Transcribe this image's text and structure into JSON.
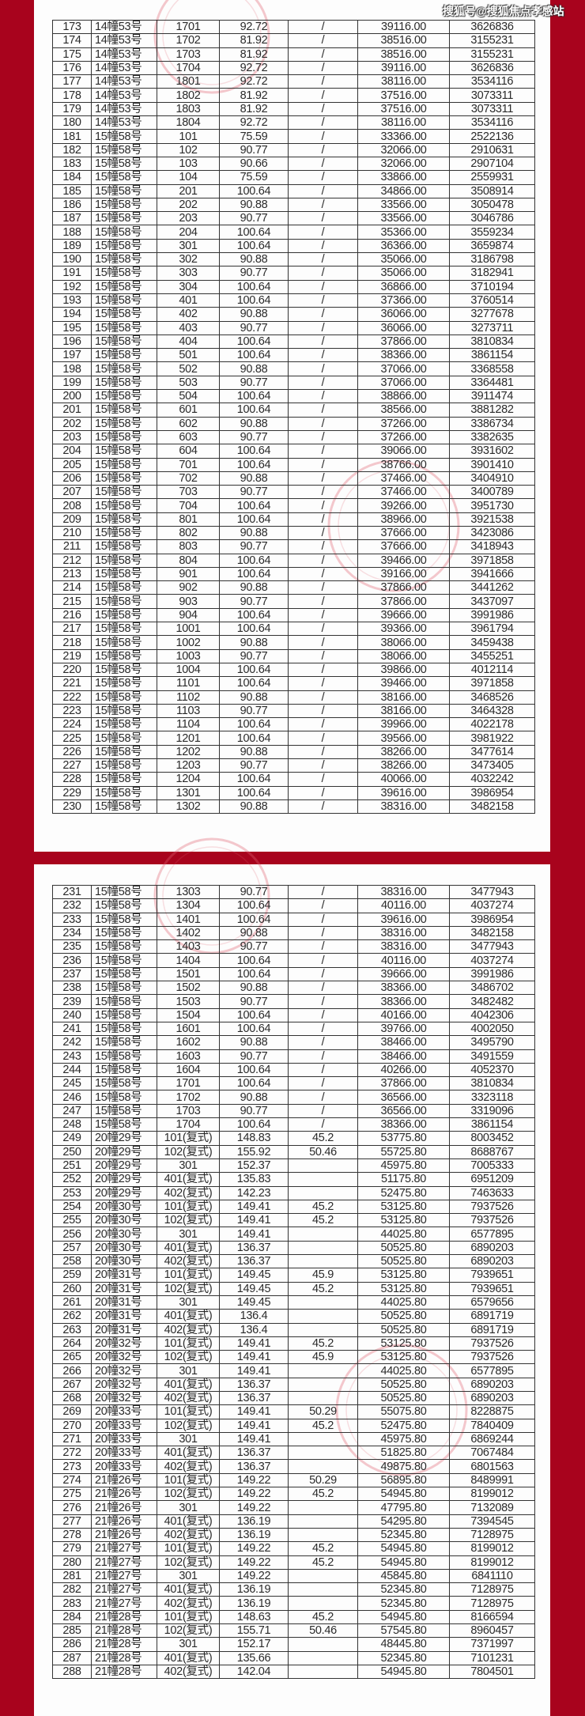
{
  "watermark": "搜狐号@搜狐焦点孝感站",
  "colors": {
    "background": "#a8031d",
    "stamp": "#e06070"
  },
  "pages": [
    {
      "rows": [
        [
          "173",
          "14幢53号",
          "1701",
          "92.72",
          "/",
          "39116.00",
          "3626836"
        ],
        [
          "174",
          "14幢53号",
          "1702",
          "81.92",
          "/",
          "38516.00",
          "3155231"
        ],
        [
          "175",
          "14幢53号",
          "1703",
          "81.92",
          "/",
          "38516.00",
          "3155231"
        ],
        [
          "176",
          "14幢53号",
          "1704",
          "92.72",
          "/",
          "39116.00",
          "3626836"
        ],
        [
          "177",
          "14幢53号",
          "1801",
          "92.72",
          "/",
          "38116.00",
          "3534116"
        ],
        [
          "178",
          "14幢53号",
          "1802",
          "81.92",
          "/",
          "37516.00",
          "3073311"
        ],
        [
          "179",
          "14幢53号",
          "1803",
          "81.92",
          "/",
          "37516.00",
          "3073311"
        ],
        [
          "180",
          "14幢53号",
          "1804",
          "92.72",
          "/",
          "38116.00",
          "3534116"
        ],
        [
          "181",
          "15幢58号",
          "101",
          "75.59",
          "/",
          "33366.00",
          "2522136"
        ],
        [
          "182",
          "15幢58号",
          "102",
          "90.77",
          "/",
          "32066.00",
          "2910631"
        ],
        [
          "183",
          "15幢58号",
          "103",
          "90.66",
          "/",
          "32066.00",
          "2907104"
        ],
        [
          "184",
          "15幢58号",
          "104",
          "75.59",
          "/",
          "33866.00",
          "2559931"
        ],
        [
          "185",
          "15幢58号",
          "201",
          "100.64",
          "/",
          "34866.00",
          "3508914"
        ],
        [
          "186",
          "15幢58号",
          "202",
          "90.88",
          "/",
          "33566.00",
          "3050478"
        ],
        [
          "187",
          "15幢58号",
          "203",
          "90.77",
          "/",
          "33566.00",
          "3046786"
        ],
        [
          "188",
          "15幢58号",
          "204",
          "100.64",
          "/",
          "35366.00",
          "3559234"
        ],
        [
          "189",
          "15幢58号",
          "301",
          "100.64",
          "/",
          "36366.00",
          "3659874"
        ],
        [
          "190",
          "15幢58号",
          "302",
          "90.88",
          "/",
          "35066.00",
          "3186798"
        ],
        [
          "191",
          "15幢58号",
          "303",
          "90.77",
          "/",
          "35066.00",
          "3182941"
        ],
        [
          "192",
          "15幢58号",
          "304",
          "100.64",
          "/",
          "36866.00",
          "3710194"
        ],
        [
          "193",
          "15幢58号",
          "401",
          "100.64",
          "/",
          "37366.00",
          "3760514"
        ],
        [
          "194",
          "15幢58号",
          "402",
          "90.88",
          "/",
          "36066.00",
          "3277678"
        ],
        [
          "195",
          "15幢58号",
          "403",
          "90.77",
          "/",
          "36066.00",
          "3273711"
        ],
        [
          "196",
          "15幢58号",
          "404",
          "100.64",
          "/",
          "37866.00",
          "3810834"
        ],
        [
          "197",
          "15幢58号",
          "501",
          "100.64",
          "/",
          "38366.00",
          "3861154"
        ],
        [
          "198",
          "15幢58号",
          "502",
          "90.88",
          "/",
          "37066.00",
          "3368558"
        ],
        [
          "199",
          "15幢58号",
          "503",
          "90.77",
          "/",
          "37066.00",
          "3364481"
        ],
        [
          "200",
          "15幢58号",
          "504",
          "100.64",
          "/",
          "38866.00",
          "3911474"
        ],
        [
          "201",
          "15幢58号",
          "601",
          "100.64",
          "/",
          "38566.00",
          "3881282"
        ],
        [
          "202",
          "15幢58号",
          "602",
          "90.88",
          "/",
          "37266.00",
          "3386734"
        ],
        [
          "203",
          "15幢58号",
          "603",
          "90.77",
          "/",
          "37266.00",
          "3382635"
        ],
        [
          "204",
          "15幢58号",
          "604",
          "100.64",
          "/",
          "39066.00",
          "3931602"
        ],
        [
          "205",
          "15幢58号",
          "701",
          "100.64",
          "/",
          "38766.00",
          "3901410"
        ],
        [
          "206",
          "15幢58号",
          "702",
          "90.88",
          "/",
          "37466.00",
          "3404910"
        ],
        [
          "207",
          "15幢58号",
          "703",
          "90.77",
          "/",
          "37466.00",
          "3400789"
        ],
        [
          "208",
          "15幢58号",
          "704",
          "100.64",
          "/",
          "39266.00",
          "3951730"
        ],
        [
          "209",
          "15幢58号",
          "801",
          "100.64",
          "/",
          "38966.00",
          "3921538"
        ],
        [
          "210",
          "15幢58号",
          "802",
          "90.88",
          "/",
          "37666.00",
          "3423086"
        ],
        [
          "211",
          "15幢58号",
          "803",
          "90.77",
          "/",
          "37666.00",
          "3418943"
        ],
        [
          "212",
          "15幢58号",
          "804",
          "100.64",
          "/",
          "39466.00",
          "3971858"
        ],
        [
          "213",
          "15幢58号",
          "901",
          "100.64",
          "/",
          "39166.00",
          "3941666"
        ],
        [
          "214",
          "15幢58号",
          "902",
          "90.88",
          "/",
          "37866.00",
          "3441262"
        ],
        [
          "215",
          "15幢58号",
          "903",
          "90.77",
          "/",
          "37866.00",
          "3437097"
        ],
        [
          "216",
          "15幢58号",
          "904",
          "100.64",
          "/",
          "39666.00",
          "3991986"
        ],
        [
          "217",
          "15幢58号",
          "1001",
          "100.64",
          "/",
          "39366.00",
          "3961794"
        ],
        [
          "218",
          "15幢58号",
          "1002",
          "90.88",
          "/",
          "38066.00",
          "3459438"
        ],
        [
          "219",
          "15幢58号",
          "1003",
          "90.77",
          "/",
          "38066.00",
          "3455251"
        ],
        [
          "220",
          "15幢58号",
          "1004",
          "100.64",
          "/",
          "39866.00",
          "4012114"
        ],
        [
          "221",
          "15幢58号",
          "1101",
          "100.64",
          "/",
          "39466.00",
          "3971858"
        ],
        [
          "222",
          "15幢58号",
          "1102",
          "90.88",
          "/",
          "38166.00",
          "3468526"
        ],
        [
          "223",
          "15幢58号",
          "1103",
          "90.77",
          "/",
          "38166.00",
          "3464328"
        ],
        [
          "224",
          "15幢58号",
          "1104",
          "100.64",
          "/",
          "39966.00",
          "4022178"
        ],
        [
          "225",
          "15幢58号",
          "1201",
          "100.64",
          "/",
          "39566.00",
          "3981922"
        ],
        [
          "226",
          "15幢58号",
          "1202",
          "90.88",
          "/",
          "38266.00",
          "3477614"
        ],
        [
          "227",
          "15幢58号",
          "1203",
          "90.77",
          "/",
          "38266.00",
          "3473405"
        ],
        [
          "228",
          "15幢58号",
          "1204",
          "100.64",
          "/",
          "40066.00",
          "4032242"
        ],
        [
          "229",
          "15幢58号",
          "1301",
          "100.64",
          "/",
          "39616.00",
          "3986954"
        ],
        [
          "230",
          "15幢58号",
          "1302",
          "90.88",
          "/",
          "38316.00",
          "3482158"
        ]
      ]
    },
    {
      "rows": [
        [
          "231",
          "15幢58号",
          "1303",
          "90.77",
          "/",
          "38316.00",
          "3477943"
        ],
        [
          "232",
          "15幢58号",
          "1304",
          "100.64",
          "/",
          "40116.00",
          "4037274"
        ],
        [
          "233",
          "15幢58号",
          "1401",
          "100.64",
          "/",
          "39616.00",
          "3986954"
        ],
        [
          "234",
          "15幢58号",
          "1402",
          "90.88",
          "/",
          "38316.00",
          "3482158"
        ],
        [
          "235",
          "15幢58号",
          "1403",
          "90.77",
          "/",
          "38316.00",
          "3477943"
        ],
        [
          "236",
          "15幢58号",
          "1404",
          "100.64",
          "/",
          "40116.00",
          "4037274"
        ],
        [
          "237",
          "15幢58号",
          "1501",
          "100.64",
          "/",
          "39666.00",
          "3991986"
        ],
        [
          "238",
          "15幢58号",
          "1502",
          "90.88",
          "/",
          "38366.00",
          "3486702"
        ],
        [
          "239",
          "15幢58号",
          "1503",
          "90.77",
          "/",
          "38366.00",
          "3482482"
        ],
        [
          "240",
          "15幢58号",
          "1504",
          "100.64",
          "/",
          "40166.00",
          "4042306"
        ],
        [
          "241",
          "15幢58号",
          "1601",
          "100.64",
          "/",
          "39766.00",
          "4002050"
        ],
        [
          "242",
          "15幢58号",
          "1602",
          "90.88",
          "/",
          "38466.00",
          "3495790"
        ],
        [
          "243",
          "15幢58号",
          "1603",
          "90.77",
          "/",
          "38466.00",
          "3491559"
        ],
        [
          "244",
          "15幢58号",
          "1604",
          "100.64",
          "/",
          "40266.00",
          "4052370"
        ],
        [
          "245",
          "15幢58号",
          "1701",
          "100.64",
          "/",
          "37866.00",
          "3810834"
        ],
        [
          "246",
          "15幢58号",
          "1702",
          "90.88",
          "/",
          "36566.00",
          "3323118"
        ],
        [
          "247",
          "15幢58号",
          "1703",
          "90.77",
          "/",
          "36566.00",
          "3319096"
        ],
        [
          "248",
          "15幢58号",
          "1704",
          "100.64",
          "/",
          "38366.00",
          "3861154"
        ],
        [
          "249",
          "20幢29号",
          "101(复式)",
          "148.83",
          "45.2",
          "53775.80",
          "8003452"
        ],
        [
          "250",
          "20幢29号",
          "102(复式)",
          "155.92",
          "50.46",
          "55725.80",
          "8688767"
        ],
        [
          "251",
          "20幢29号",
          "301",
          "152.37",
          "",
          "45975.80",
          "7005333"
        ],
        [
          "252",
          "20幢29号",
          "401(复式)",
          "135.83",
          "",
          "51175.80",
          "6951209"
        ],
        [
          "253",
          "20幢29号",
          "402(复式)",
          "142.23",
          "",
          "52475.80",
          "7463633"
        ],
        [
          "254",
          "20幢30号",
          "101(复式)",
          "149.41",
          "45.2",
          "53125.80",
          "7937526"
        ],
        [
          "255",
          "20幢30号",
          "102(复式)",
          "149.41",
          "45.2",
          "53125.80",
          "7937526"
        ],
        [
          "256",
          "20幢30号",
          "301",
          "149.41",
          "",
          "44025.80",
          "6577895"
        ],
        [
          "257",
          "20幢30号",
          "401(复式)",
          "136.37",
          "",
          "50525.80",
          "6890203"
        ],
        [
          "258",
          "20幢30号",
          "402(复式)",
          "136.37",
          "",
          "50525.80",
          "6890203"
        ],
        [
          "259",
          "20幢31号",
          "101(复式)",
          "149.45",
          "45.9",
          "53125.80",
          "7939651"
        ],
        [
          "260",
          "20幢31号",
          "102(复式)",
          "149.45",
          "45.2",
          "53125.80",
          "7939651"
        ],
        [
          "261",
          "20幢31号",
          "301",
          "149.45",
          "",
          "44025.80",
          "6579656"
        ],
        [
          "262",
          "20幢31号",
          "401(复式)",
          "136.4",
          "",
          "50525.80",
          "6891719"
        ],
        [
          "263",
          "20幢31号",
          "402(复式)",
          "136.4",
          "",
          "50525.80",
          "6891719"
        ],
        [
          "264",
          "20幢32号",
          "101(复式)",
          "149.41",
          "45.2",
          "53125.80",
          "7937526"
        ],
        [
          "265",
          "20幢32号",
          "102(复式)",
          "149.41",
          "45.9",
          "53125.80",
          "7937526"
        ],
        [
          "266",
          "20幢32号",
          "301",
          "149.41",
          "",
          "44025.80",
          "6577895"
        ],
        [
          "267",
          "20幢32号",
          "401(复式)",
          "136.37",
          "",
          "50525.80",
          "6890203"
        ],
        [
          "268",
          "20幢32号",
          "402(复式)",
          "136.37",
          "",
          "50525.80",
          "6890203"
        ],
        [
          "269",
          "20幢33号",
          "101(复式)",
          "149.41",
          "50.29",
          "55075.80",
          "8228875"
        ],
        [
          "270",
          "20幢33号",
          "102(复式)",
          "149.41",
          "45.2",
          "52475.80",
          "7840409"
        ],
        [
          "271",
          "20幢33号",
          "301",
          "149.41",
          "",
          "45975.80",
          "6869244"
        ],
        [
          "272",
          "20幢33号",
          "401(复式)",
          "136.37",
          "",
          "51825.80",
          "7067484"
        ],
        [
          "273",
          "20幢33号",
          "402(复式)",
          "136.37",
          "",
          "49875.80",
          "6801563"
        ],
        [
          "274",
          "21幢26号",
          "101(复式)",
          "149.22",
          "50.29",
          "56895.80",
          "8489991"
        ],
        [
          "275",
          "21幢26号",
          "102(复式)",
          "149.22",
          "45.2",
          "54945.80",
          "8199012"
        ],
        [
          "276",
          "21幢26号",
          "301",
          "149.22",
          "",
          "47795.80",
          "7132089"
        ],
        [
          "277",
          "21幢26号",
          "401(复式)",
          "136.19",
          "",
          "54295.80",
          "7394545"
        ],
        [
          "278",
          "21幢26号",
          "402(复式)",
          "136.19",
          "",
          "52345.80",
          "7128975"
        ],
        [
          "279",
          "21幢27号",
          "101(复式)",
          "149.22",
          "45.2",
          "54945.80",
          "8199012"
        ],
        [
          "280",
          "21幢27号",
          "102(复式)",
          "149.22",
          "45.2",
          "54945.80",
          "8199012"
        ],
        [
          "281",
          "21幢27号",
          "301",
          "149.22",
          "",
          "45845.80",
          "6841110"
        ],
        [
          "282",
          "21幢27号",
          "401(复式)",
          "136.19",
          "",
          "52345.80",
          "7128975"
        ],
        [
          "283",
          "21幢27号",
          "402(复式)",
          "136.19",
          "",
          "52345.80",
          "7128975"
        ],
        [
          "284",
          "21幢28号",
          "101(复式)",
          "148.63",
          "45.2",
          "54945.80",
          "8166594"
        ],
        [
          "285",
          "21幢28号",
          "102(复式)",
          "155.71",
          "50.46",
          "57545.80",
          "8960457"
        ],
        [
          "286",
          "21幢28号",
          "301",
          "152.17",
          "",
          "48445.80",
          "7371997"
        ],
        [
          "287",
          "21幢28号",
          "401(复式)",
          "135.66",
          "",
          "52345.80",
          "7101231"
        ],
        [
          "288",
          "21幢28号",
          "402(复式)",
          "142.04",
          "",
          "54945.80",
          "7804501"
        ]
      ]
    }
  ]
}
